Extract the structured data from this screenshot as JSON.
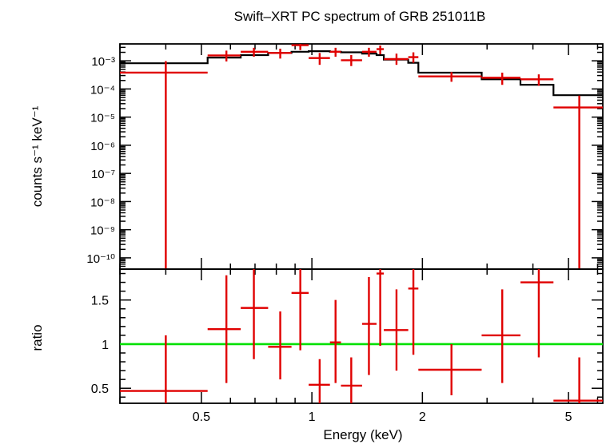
{
  "chart_data": [
    {
      "type": "scatter",
      "title": "Swift–XRT PC spectrum of GRB 251011B",
      "ylabel": "counts s⁻¹ keV⁻¹",
      "xscale": "log",
      "yscale": "log",
      "xlim": [
        0.3,
        6.2
      ],
      "ylim_exp": [
        -10.4,
        -2.4
      ],
      "y_tick_labels": [
        "10⁻³",
        "10⁻⁴",
        "10⁻⁵",
        "10⁻⁶",
        "10⁻⁷",
        "10⁻⁸",
        "10⁻⁹",
        "10⁻¹⁰"
      ],
      "y_tick_exps": [
        -3,
        -4,
        -5,
        -6,
        -7,
        -8,
        -9,
        -10
      ],
      "series": [
        {
          "name": "",
          "color": "#e00000",
          "style": "crosses",
          "points": [
            {
              "xlo": 0.3,
              "xhi": 0.52,
              "x": 0.4,
              "y": 0.00038,
              "ylo": 1e-11,
              "yhi": 0.00098
            },
            {
              "xlo": 0.52,
              "xhi": 0.64,
              "x": 0.585,
              "y": 0.00155,
              "ylo": 0.00095,
              "yhi": 0.0023
            },
            {
              "xlo": 0.64,
              "xhi": 0.76,
              "x": 0.695,
              "y": 0.0021,
              "ylo": 0.0014,
              "yhi": 0.0029
            },
            {
              "xlo": 0.76,
              "xhi": 0.88,
              "x": 0.82,
              "y": 0.0019,
              "ylo": 0.0012,
              "yhi": 0.0027
            },
            {
              "xlo": 0.88,
              "xhi": 0.98,
              "x": 0.93,
              "y": 0.0036,
              "ylo": 0.0024,
              "yhi": 0.0045
            },
            {
              "xlo": 0.98,
              "xhi": 1.12,
              "x": 1.05,
              "y": 0.00125,
              "ylo": 0.00072,
              "yhi": 0.0019
            },
            {
              "xlo": 1.12,
              "xhi": 1.2,
              "x": 1.16,
              "y": 0.0021,
              "ylo": 0.0014,
              "yhi": 0.0029
            },
            {
              "xlo": 1.2,
              "xhi": 1.37,
              "x": 1.28,
              "y": 0.00105,
              "ylo": 0.00065,
              "yhi": 0.0016
            },
            {
              "xlo": 1.37,
              "xhi": 1.5,
              "x": 1.43,
              "y": 0.0021,
              "ylo": 0.0014,
              "yhi": 0.0029
            },
            {
              "xlo": 1.5,
              "xhi": 1.57,
              "x": 1.535,
              "y": 0.0026,
              "ylo": 0.0017,
              "yhi": 0.0035
            },
            {
              "xlo": 1.57,
              "xhi": 1.83,
              "x": 1.7,
              "y": 0.00115,
              "ylo": 0.00072,
              "yhi": 0.0018
            },
            {
              "xlo": 1.83,
              "xhi": 1.95,
              "x": 1.89,
              "y": 0.00135,
              "ylo": 0.00085,
              "yhi": 0.002
            },
            {
              "xlo": 1.95,
              "xhi": 2.9,
              "x": 2.4,
              "y": 0.00028,
              "ylo": 0.00018,
              "yhi": 0.0004
            },
            {
              "xlo": 2.9,
              "xhi": 3.7,
              "x": 3.3,
              "y": 0.00025,
              "ylo": 0.00014,
              "yhi": 0.00038
            },
            {
              "xlo": 3.7,
              "xhi": 4.55,
              "x": 4.15,
              "y": 0.00022,
              "ylo": 0.00013,
              "yhi": 0.00033
            },
            {
              "xlo": 4.55,
              "xhi": 6.2,
              "x": 5.35,
              "y": 2.2e-05,
              "ylo": 1e-11,
              "yhi": 5.8e-05
            }
          ]
        },
        {
          "name": "",
          "color": "#000000",
          "style": "step",
          "bins": [
            {
              "xlo": 0.3,
              "xhi": 0.52,
              "y": 0.00082
            },
            {
              "xlo": 0.52,
              "xhi": 0.64,
              "y": 0.0013
            },
            {
              "xlo": 0.64,
              "xhi": 0.76,
              "y": 0.0016
            },
            {
              "xlo": 0.76,
              "xhi": 0.88,
              "y": 0.0019
            },
            {
              "xlo": 0.88,
              "xhi": 0.98,
              "y": 0.0021
            },
            {
              "xlo": 0.98,
              "xhi": 1.12,
              "y": 0.0022
            },
            {
              "xlo": 1.12,
              "xhi": 1.2,
              "y": 0.0021
            },
            {
              "xlo": 1.2,
              "xhi": 1.37,
              "y": 0.002
            },
            {
              "xlo": 1.37,
              "xhi": 1.5,
              "y": 0.0018
            },
            {
              "xlo": 1.5,
              "xhi": 1.57,
              "y": 0.0016
            },
            {
              "xlo": 1.57,
              "xhi": 1.83,
              "y": 0.0011
            },
            {
              "xlo": 1.83,
              "xhi": 1.95,
              "y": 0.00085
            },
            {
              "xlo": 1.95,
              "xhi": 2.9,
              "y": 0.00038
            },
            {
              "xlo": 2.9,
              "xhi": 3.7,
              "y": 0.00022
            },
            {
              "xlo": 3.7,
              "xhi": 4.55,
              "y": 0.00014
            },
            {
              "xlo": 4.55,
              "xhi": 6.2,
              "y": 6e-05
            }
          ]
        }
      ]
    },
    {
      "type": "scatter",
      "xlabel": "Energy (keV)",
      "ylabel": "ratio",
      "xscale": "log",
      "xlim": [
        0.3,
        6.2
      ],
      "ylim": [
        0.33,
        1.85
      ],
      "x_ticks": [
        0.5,
        1,
        2,
        5
      ],
      "x_tick_labels": [
        "0.5",
        "1",
        "2",
        "5"
      ],
      "y_ticks": [
        0.5,
        1,
        1.5
      ],
      "y_tick_labels": [
        "0.5",
        "1",
        "1.5"
      ],
      "reference_line": {
        "y": 1,
        "color": "#00e000"
      },
      "series": [
        {
          "name": "",
          "color": "#e00000",
          "style": "crosses",
          "points": [
            {
              "xlo": 0.3,
              "xhi": 0.52,
              "x": 0.4,
              "y": 0.47,
              "ylo": 0.33,
              "yhi": 1.1
            },
            {
              "xlo": 0.52,
              "xhi": 0.64,
              "x": 0.585,
              "y": 1.17,
              "ylo": 0.56,
              "yhi": 1.78
            },
            {
              "xlo": 0.64,
              "xhi": 0.76,
              "x": 0.695,
              "y": 1.41,
              "ylo": 0.83,
              "yhi": 1.85
            },
            {
              "xlo": 0.76,
              "xhi": 0.88,
              "x": 0.82,
              "y": 0.97,
              "ylo": 0.6,
              "yhi": 1.37
            },
            {
              "xlo": 0.88,
              "xhi": 0.98,
              "x": 0.93,
              "y": 1.58,
              "ylo": 0.93,
              "yhi": 1.85
            },
            {
              "xlo": 0.98,
              "xhi": 1.12,
              "x": 1.05,
              "y": 0.54,
              "ylo": 0.33,
              "yhi": 0.83
            },
            {
              "xlo": 1.12,
              "xhi": 1.2,
              "x": 1.16,
              "y": 1.02,
              "ylo": 0.56,
              "yhi": 1.5
            },
            {
              "xlo": 1.2,
              "xhi": 1.37,
              "x": 1.28,
              "y": 0.53,
              "ylo": 0.33,
              "yhi": 0.85
            },
            {
              "xlo": 1.37,
              "xhi": 1.5,
              "x": 1.43,
              "y": 1.23,
              "ylo": 0.65,
              "yhi": 1.76
            },
            {
              "xlo": 1.5,
              "xhi": 1.57,
              "x": 1.535,
              "y": 1.8,
              "ylo": 0.98,
              "yhi": 1.85
            },
            {
              "xlo": 1.57,
              "xhi": 1.83,
              "x": 1.7,
              "y": 1.16,
              "ylo": 0.7,
              "yhi": 1.62
            },
            {
              "xlo": 1.83,
              "xhi": 1.95,
              "x": 1.89,
              "y": 1.63,
              "ylo": 0.88,
              "yhi": 1.85
            },
            {
              "xlo": 1.95,
              "xhi": 2.9,
              "x": 2.4,
              "y": 0.71,
              "ylo": 0.42,
              "yhi": 1.0
            },
            {
              "xlo": 2.9,
              "xhi": 3.7,
              "x": 3.3,
              "y": 1.1,
              "ylo": 0.56,
              "yhi": 1.62
            },
            {
              "xlo": 3.7,
              "xhi": 4.55,
              "x": 4.15,
              "y": 1.7,
              "ylo": 0.85,
              "yhi": 1.85
            },
            {
              "xlo": 4.55,
              "xhi": 6.2,
              "x": 5.35,
              "y": 0.36,
              "ylo": 0.33,
              "yhi": 0.85
            }
          ]
        }
      ]
    }
  ]
}
